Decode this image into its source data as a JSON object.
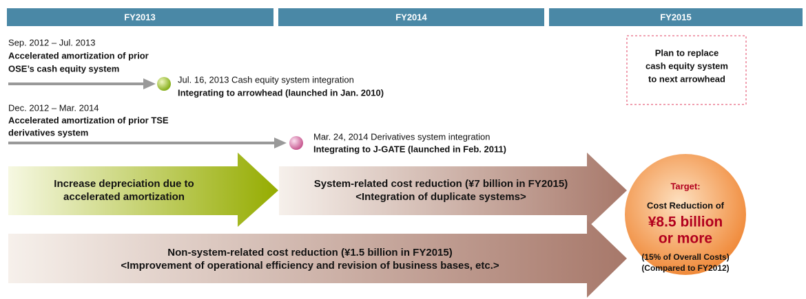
{
  "header": [
    "FY2013",
    "FY2014",
    "FY2015"
  ],
  "timeline": [
    {
      "period": "Sep. 2012 – Jul. 2013",
      "title": [
        "Accelerated amortization of prior",
        "OSE’s cash equity system"
      ],
      "milestone": "Jul. 16, 2013  Cash equity system integration",
      "detail": "Integrating to arrowhead (launched in Jan. 2010)"
    },
    {
      "period": "Dec. 2012 – Mar. 2014",
      "title": [
        "Accelerated amortization of prior TSE",
        "derivatives system"
      ],
      "milestone": "Mar. 24, 2014  Derivatives system integration",
      "detail": "Integrating to J-GATE (launched in Feb. 2011)"
    }
  ],
  "plan": [
    "Plan to replace",
    "cash equity system",
    "to next arrowhead"
  ],
  "arrows": [
    [
      "Increase depreciation due to",
      "accelerated amortization"
    ],
    [
      "System-related cost reduction (¥7 billion in FY2015)",
      "<Integration of duplicate systems>"
    ],
    [
      "Non-system-related cost reduction (¥1.5 billion in FY2015)",
      "<Improvement of operational efficiency and revision of business bases, etc.>"
    ]
  ],
  "target": {
    "label": "Target:",
    "line": "Cost Reduction of",
    "amount": [
      "¥8.5 billion",
      "or more"
    ],
    "notes": [
      "(15% of Overall Costs)",
      "(Compared to FY2012)"
    ]
  }
}
